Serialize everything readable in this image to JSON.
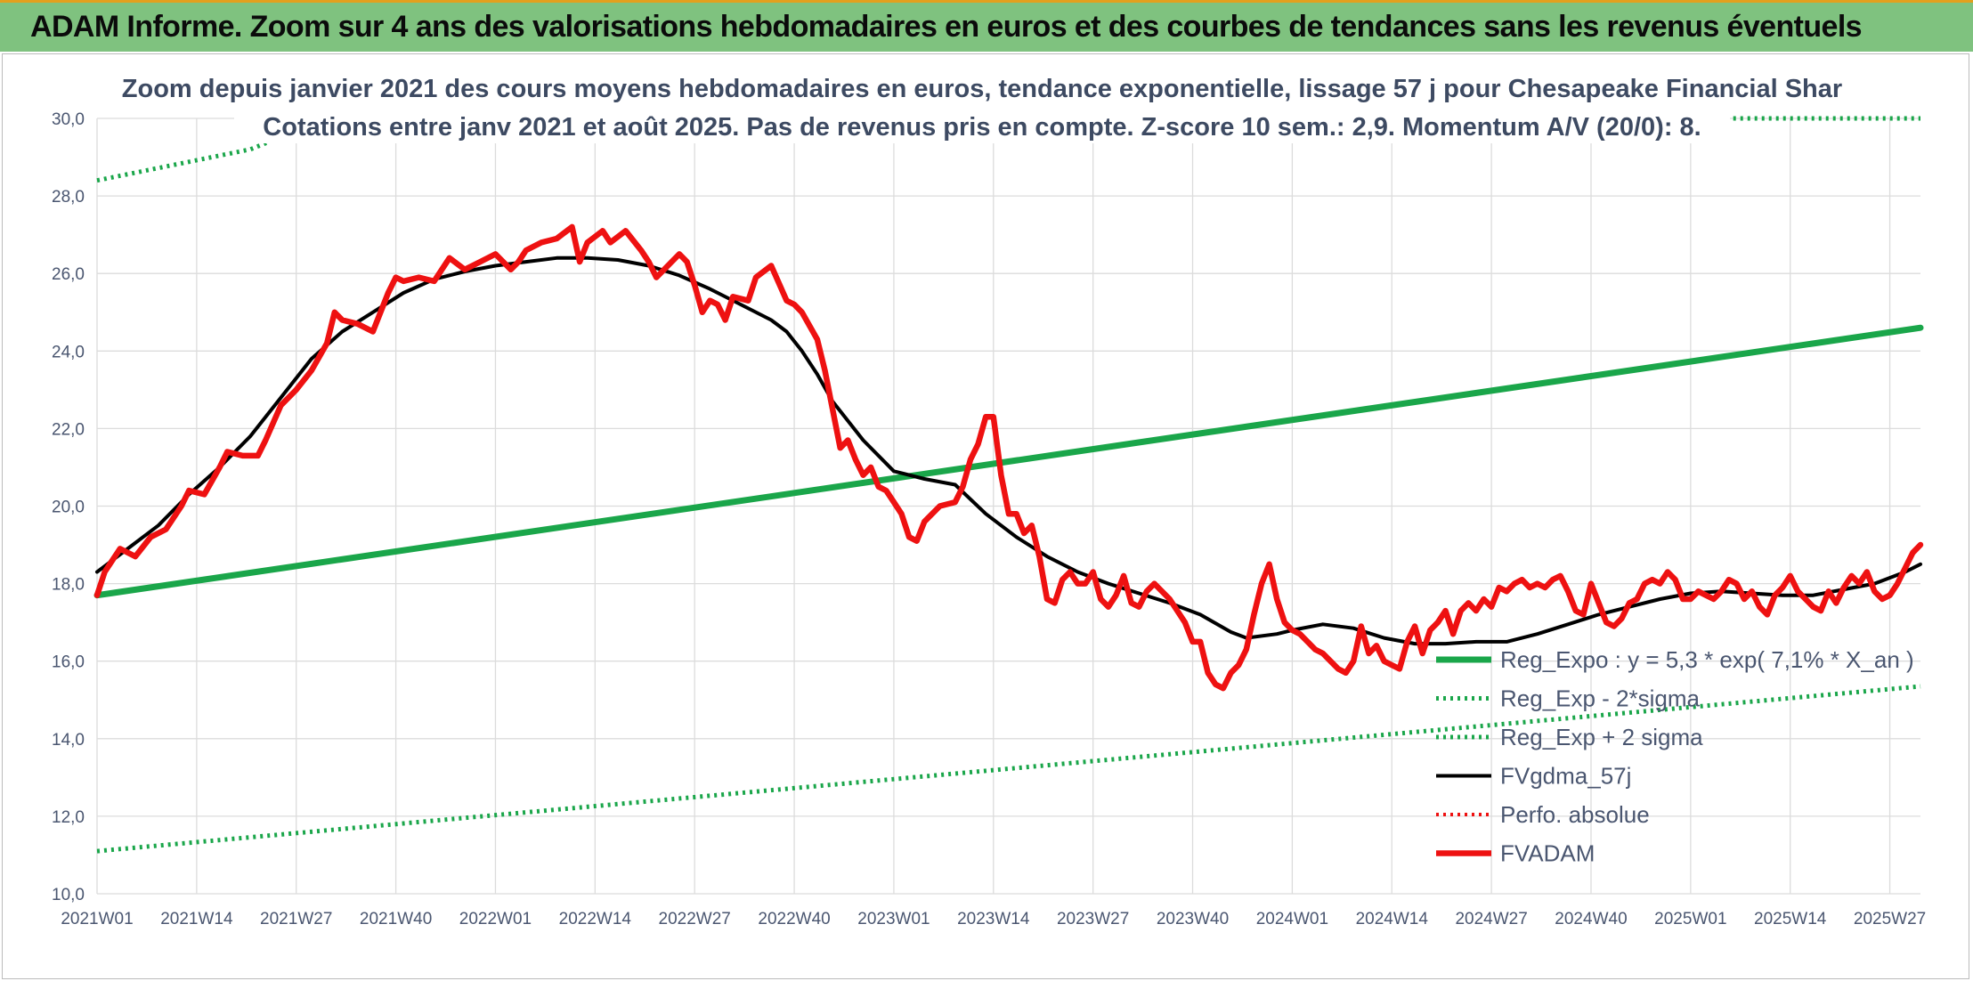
{
  "header": {
    "title": "ADAM Informe. Zoom sur 4 ans des valorisations hebdomadaires en euros et des courbes de tendances sans les revenus éventuels"
  },
  "colors": {
    "header_background": "#7fc27f",
    "header_top_border": "#e2a01e",
    "trend": "#1aa64a",
    "fvadam": "#ee1111",
    "fvgdma": "#000000",
    "perfo": "#ee1111"
  },
  "chart_data": {
    "type": "line",
    "title_lines": [
      "Zoom depuis janvier 2021 des cours moyens hebdomadaires en euros, tendance exponentielle, lissage 57 j pour Chesapeake Financial Shar",
      "Cotations entre janv 2021 et août 2025. Pas de revenus pris en compte. Z-score 10 sem.: 2,9. Momentum A/V (20/0): 8."
    ],
    "xlabel": "",
    "ylabel": "",
    "ylim": [
      10,
      30
    ],
    "y_ticks": [
      "10,0",
      "12,0",
      "14,0",
      "16,0",
      "18,0",
      "20,0",
      "22,0",
      "24,0",
      "26,0",
      "28,0",
      "30,0"
    ],
    "x_tick_labels": [
      "2021W01",
      "2021W14",
      "2021W27",
      "2021W40",
      "2022W01",
      "2022W14",
      "2022W27",
      "2022W40",
      "2023W01",
      "2023W14",
      "2023W27",
      "2023W40",
      "2024W01",
      "2024W14",
      "2024W27",
      "2024W40",
      "2025W01",
      "2025W14",
      "2025W27"
    ],
    "x_tick_week_index": [
      0,
      13,
      26,
      39,
      52,
      65,
      78,
      91,
      104,
      117,
      130,
      143,
      156,
      169,
      182,
      195,
      208,
      221,
      234
    ],
    "x_range_weeks": [
      0,
      238
    ],
    "grid": true,
    "legend_position": "bottom-right",
    "series": [
      {
        "name": "Reg_Expo : y = 5,3 * exp( 7,1% *  X_an )",
        "style": "solid-thick",
        "points": [
          [
            0,
            17.7
          ],
          [
            238,
            24.6
          ]
        ]
      },
      {
        "name": "Reg_Exp - 2*sigma",
        "style": "dotted",
        "points": [
          [
            0,
            11.1
          ],
          [
            238,
            15.35
          ]
        ]
      },
      {
        "name": "Reg_Exp + 2 sigma",
        "style": "dotted",
        "points": [
          [
            0,
            28.4
          ],
          [
            20,
            29.2
          ],
          [
            30,
            30.0
          ],
          [
            238,
            30.0
          ]
        ]
      },
      {
        "name": "FVgdma_57j",
        "style": "solid",
        "points": [
          [
            0,
            18.3
          ],
          [
            4,
            18.9
          ],
          [
            8,
            19.5
          ],
          [
            12,
            20.3
          ],
          [
            16,
            21.0
          ],
          [
            20,
            21.8
          ],
          [
            24,
            22.8
          ],
          [
            28,
            23.8
          ],
          [
            32,
            24.5
          ],
          [
            36,
            25.0
          ],
          [
            40,
            25.5
          ],
          [
            44,
            25.85
          ],
          [
            48,
            26.05
          ],
          [
            52,
            26.2
          ],
          [
            56,
            26.3
          ],
          [
            60,
            26.4
          ],
          [
            64,
            26.4
          ],
          [
            68,
            26.35
          ],
          [
            72,
            26.2
          ],
          [
            76,
            25.95
          ],
          [
            80,
            25.6
          ],
          [
            84,
            25.2
          ],
          [
            88,
            24.8
          ],
          [
            90,
            24.5
          ],
          [
            92,
            24.0
          ],
          [
            94,
            23.4
          ],
          [
            96,
            22.7
          ],
          [
            100,
            21.7
          ],
          [
            104,
            20.9
          ],
          [
            108,
            20.7
          ],
          [
            112,
            20.55
          ],
          [
            116,
            19.8
          ],
          [
            120,
            19.2
          ],
          [
            124,
            18.7
          ],
          [
            128,
            18.3
          ],
          [
            132,
            18.0
          ],
          [
            136,
            17.75
          ],
          [
            140,
            17.5
          ],
          [
            144,
            17.2
          ],
          [
            148,
            16.75
          ],
          [
            150,
            16.6
          ],
          [
            154,
            16.7
          ],
          [
            156,
            16.8
          ],
          [
            160,
            16.95
          ],
          [
            164,
            16.85
          ],
          [
            168,
            16.6
          ],
          [
            172,
            16.45
          ],
          [
            176,
            16.45
          ],
          [
            180,
            16.5
          ],
          [
            184,
            16.5
          ],
          [
            188,
            16.7
          ],
          [
            192,
            16.95
          ],
          [
            196,
            17.2
          ],
          [
            200,
            17.4
          ],
          [
            204,
            17.6
          ],
          [
            208,
            17.75
          ],
          [
            212,
            17.8
          ],
          [
            216,
            17.75
          ],
          [
            220,
            17.7
          ],
          [
            224,
            17.7
          ],
          [
            228,
            17.85
          ],
          [
            232,
            18.0
          ],
          [
            236,
            18.3
          ],
          [
            238,
            18.5
          ]
        ]
      },
      {
        "name": "Perfo. absolue",
        "style": "dotted",
        "points": []
      },
      {
        "name": "FVADAM",
        "style": "solid-thick",
        "points": [
          [
            0,
            17.7
          ],
          [
            1,
            18.3
          ],
          [
            3,
            18.9
          ],
          [
            5,
            18.7
          ],
          [
            7,
            19.2
          ],
          [
            9,
            19.4
          ],
          [
            11,
            20.0
          ],
          [
            12,
            20.4
          ],
          [
            14,
            20.3
          ],
          [
            16,
            21.0
          ],
          [
            17,
            21.4
          ],
          [
            19,
            21.3
          ],
          [
            21,
            21.3
          ],
          [
            22,
            21.7
          ],
          [
            24,
            22.6
          ],
          [
            26,
            23.0
          ],
          [
            28,
            23.5
          ],
          [
            30,
            24.2
          ],
          [
            31,
            25.0
          ],
          [
            32,
            24.8
          ],
          [
            34,
            24.7
          ],
          [
            36,
            24.5
          ],
          [
            38,
            25.5
          ],
          [
            39,
            25.9
          ],
          [
            40,
            25.8
          ],
          [
            42,
            25.9
          ],
          [
            44,
            25.8
          ],
          [
            46,
            26.4
          ],
          [
            48,
            26.1
          ],
          [
            50,
            26.3
          ],
          [
            52,
            26.5
          ],
          [
            54,
            26.1
          ],
          [
            55,
            26.3
          ],
          [
            56,
            26.6
          ],
          [
            58,
            26.8
          ],
          [
            60,
            26.9
          ],
          [
            62,
            27.2
          ],
          [
            63,
            26.3
          ],
          [
            64,
            26.8
          ],
          [
            66,
            27.1
          ],
          [
            67,
            26.8
          ],
          [
            69,
            27.1
          ],
          [
            71,
            26.6
          ],
          [
            72,
            26.3
          ],
          [
            73,
            25.9
          ],
          [
            75,
            26.3
          ],
          [
            76,
            26.5
          ],
          [
            77,
            26.3
          ],
          [
            78,
            25.7
          ],
          [
            79,
            25.0
          ],
          [
            80,
            25.3
          ],
          [
            81,
            25.2
          ],
          [
            82,
            24.8
          ],
          [
            83,
            25.4
          ],
          [
            85,
            25.3
          ],
          [
            86,
            25.9
          ],
          [
            88,
            26.2
          ],
          [
            90,
            25.3
          ],
          [
            91,
            25.2
          ],
          [
            92,
            25.0
          ],
          [
            94,
            24.3
          ],
          [
            95,
            23.5
          ],
          [
            96,
            22.5
          ],
          [
            97,
            21.5
          ],
          [
            98,
            21.7
          ],
          [
            99,
            21.2
          ],
          [
            100,
            20.8
          ],
          [
            101,
            21.0
          ],
          [
            102,
            20.5
          ],
          [
            103,
            20.4
          ],
          [
            104,
            20.1
          ],
          [
            105,
            19.8
          ],
          [
            106,
            19.2
          ],
          [
            107,
            19.1
          ],
          [
            108,
            19.6
          ],
          [
            110,
            20.0
          ],
          [
            112,
            20.1
          ],
          [
            113,
            20.5
          ],
          [
            114,
            21.2
          ],
          [
            115,
            21.6
          ],
          [
            116,
            22.3
          ],
          [
            117,
            22.3
          ],
          [
            118,
            20.8
          ],
          [
            119,
            19.8
          ],
          [
            120,
            19.8
          ],
          [
            121,
            19.3
          ],
          [
            122,
            19.5
          ],
          [
            123,
            18.7
          ],
          [
            124,
            17.6
          ],
          [
            125,
            17.5
          ],
          [
            126,
            18.1
          ],
          [
            127,
            18.3
          ],
          [
            128,
            18.0
          ],
          [
            129,
            18.0
          ],
          [
            130,
            18.3
          ],
          [
            131,
            17.6
          ],
          [
            132,
            17.4
          ],
          [
            133,
            17.7
          ],
          [
            134,
            18.2
          ],
          [
            135,
            17.5
          ],
          [
            136,
            17.4
          ],
          [
            137,
            17.8
          ],
          [
            138,
            18.0
          ],
          [
            140,
            17.6
          ],
          [
            141,
            17.3
          ],
          [
            142,
            17.0
          ],
          [
            143,
            16.5
          ],
          [
            144,
            16.5
          ],
          [
            145,
            15.7
          ],
          [
            146,
            15.4
          ],
          [
            147,
            15.3
          ],
          [
            148,
            15.7
          ],
          [
            149,
            15.9
          ],
          [
            150,
            16.3
          ],
          [
            151,
            17.2
          ],
          [
            152,
            18.0
          ],
          [
            153,
            18.5
          ],
          [
            154,
            17.6
          ],
          [
            155,
            17.0
          ],
          [
            156,
            16.8
          ],
          [
            157,
            16.7
          ],
          [
            158,
            16.5
          ],
          [
            159,
            16.3
          ],
          [
            160,
            16.2
          ],
          [
            161,
            16.0
          ],
          [
            162,
            15.8
          ],
          [
            163,
            15.7
          ],
          [
            164,
            16.0
          ],
          [
            165,
            16.9
          ],
          [
            166,
            16.2
          ],
          [
            167,
            16.4
          ],
          [
            168,
            16.0
          ],
          [
            169,
            15.9
          ],
          [
            170,
            15.8
          ],
          [
            171,
            16.5
          ],
          [
            172,
            16.9
          ],
          [
            173,
            16.2
          ],
          [
            174,
            16.8
          ],
          [
            175,
            17.0
          ],
          [
            176,
            17.3
          ],
          [
            177,
            16.7
          ],
          [
            178,
            17.3
          ],
          [
            179,
            17.5
          ],
          [
            180,
            17.3
          ],
          [
            181,
            17.6
          ],
          [
            182,
            17.4
          ],
          [
            183,
            17.9
          ],
          [
            184,
            17.8
          ],
          [
            185,
            18.0
          ],
          [
            186,
            18.1
          ],
          [
            187,
            17.9
          ],
          [
            188,
            18.0
          ],
          [
            189,
            17.9
          ],
          [
            190,
            18.1
          ],
          [
            191,
            18.2
          ],
          [
            192,
            17.8
          ],
          [
            193,
            17.3
          ],
          [
            194,
            17.2
          ],
          [
            195,
            18.0
          ],
          [
            196,
            17.5
          ],
          [
            197,
            17.0
          ],
          [
            198,
            16.9
          ],
          [
            199,
            17.1
          ],
          [
            200,
            17.5
          ],
          [
            201,
            17.6
          ],
          [
            202,
            18.0
          ],
          [
            203,
            18.1
          ],
          [
            204,
            18.0
          ],
          [
            205,
            18.3
          ],
          [
            206,
            18.1
          ],
          [
            207,
            17.6
          ],
          [
            208,
            17.6
          ],
          [
            209,
            17.8
          ],
          [
            210,
            17.7
          ],
          [
            211,
            17.6
          ],
          [
            212,
            17.8
          ],
          [
            213,
            18.1
          ],
          [
            214,
            18.0
          ],
          [
            215,
            17.6
          ],
          [
            216,
            17.8
          ],
          [
            217,
            17.4
          ],
          [
            218,
            17.2
          ],
          [
            219,
            17.7
          ],
          [
            220,
            17.9
          ],
          [
            221,
            18.2
          ],
          [
            222,
            17.8
          ],
          [
            223,
            17.6
          ],
          [
            224,
            17.4
          ],
          [
            225,
            17.3
          ],
          [
            226,
            17.8
          ],
          [
            227,
            17.5
          ],
          [
            228,
            17.9
          ],
          [
            229,
            18.2
          ],
          [
            230,
            18.0
          ],
          [
            231,
            18.3
          ],
          [
            232,
            17.8
          ],
          [
            233,
            17.6
          ],
          [
            234,
            17.7
          ],
          [
            235,
            18.0
          ],
          [
            236,
            18.4
          ],
          [
            237,
            18.8
          ],
          [
            238,
            19.0
          ]
        ]
      }
    ]
  }
}
